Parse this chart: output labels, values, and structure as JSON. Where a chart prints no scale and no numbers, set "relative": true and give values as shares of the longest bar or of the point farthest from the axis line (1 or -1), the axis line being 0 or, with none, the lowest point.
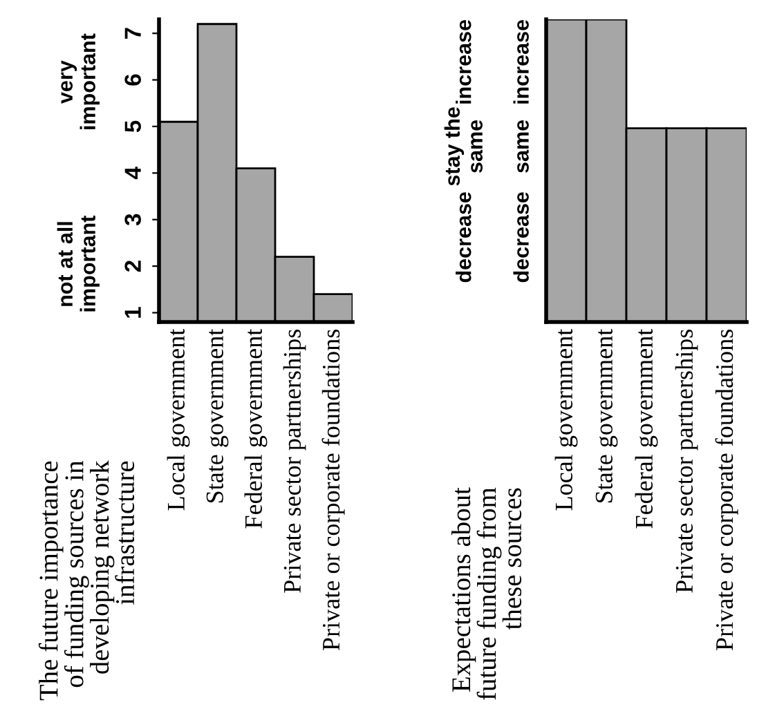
{
  "chart_data": [
    {
      "type": "bar",
      "title": "The future importance\nof funding sources in\ndeveloping network\ninfrastructure",
      "categories": [
        "Local government",
        "State government",
        "Federal government",
        "Private sector partnerships",
        "Private or corporate foundations"
      ],
      "values": [
        5.1,
        7.2,
        4.1,
        2.2,
        1.4
      ],
      "color": "#a6a6a6",
      "ylim": [
        0.8,
        7.3
      ],
      "yticks": [
        1,
        2,
        3,
        4,
        5,
        6,
        7
      ],
      "annotations": [
        "not at all\nimportant",
        "very\nimportant"
      ],
      "grid": false
    },
    {
      "type": "bar",
      "relative": true,
      "title": "Expectations about\nfuture funding from\nthese sources",
      "categories": [
        "Local government",
        "State government",
        "Federal government",
        "Private sector partnerships",
        "Private or corporate foundations"
      ],
      "values": [
        1,
        1,
        0.64,
        0.64,
        0.64
      ],
      "color": "#a6a6a6",
      "annotations": [
        "decrease",
        "same",
        "increase",
        "decrease",
        "stay the\nsame",
        "increase"
      ],
      "grid": false
    }
  ]
}
